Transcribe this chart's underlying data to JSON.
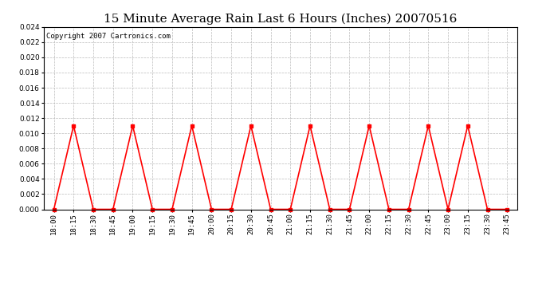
{
  "title": "15 Minute Average Rain Last 6 Hours (Inches) 20070516",
  "copyright_text": "Copyright 2007 Cartronics.com",
  "line_color": "#ff0000",
  "bg_color": "#ffffff",
  "grid_color": "#bbbbbb",
  "border_color": "#000000",
  "ylim": [
    0.0,
    0.024
  ],
  "yticks": [
    0.0,
    0.002,
    0.004,
    0.006,
    0.008,
    0.01,
    0.012,
    0.014,
    0.016,
    0.018,
    0.02,
    0.022,
    0.024
  ],
  "time_labels": [
    "18:00",
    "18:15",
    "18:30",
    "18:45",
    "19:00",
    "19:15",
    "19:30",
    "19:45",
    "20:00",
    "20:15",
    "20:30",
    "20:45",
    "21:00",
    "21:15",
    "21:30",
    "21:45",
    "22:00",
    "22:15",
    "22:30",
    "22:45",
    "23:00",
    "23:15",
    "23:30",
    "23:45"
  ],
  "values": [
    0.0,
    0.011,
    0.0,
    0.0,
    0.011,
    0.0,
    0.0,
    0.011,
    0.0,
    0.0,
    0.011,
    0.0,
    0.0,
    0.011,
    0.0,
    0.0,
    0.011,
    0.0,
    0.0,
    0.011,
    0.0,
    0.011,
    0.0,
    0.0
  ],
  "marker_size": 3,
  "line_width": 1.2,
  "title_fontsize": 11,
  "tick_fontsize": 6.5,
  "copyright_fontsize": 6.5
}
